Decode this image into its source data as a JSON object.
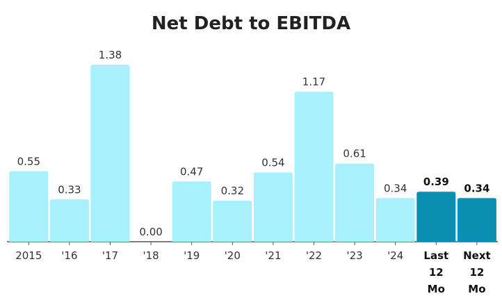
{
  "chart_data": {
    "type": "bar",
    "title": "Net Debt to EBITDA",
    "categories": [
      "2015",
      "'16",
      "'17",
      "'18",
      "'19",
      "'20",
      "'21",
      "'22",
      "'23",
      "'24",
      "Last 12 Mo",
      "Next 12 Mo"
    ],
    "values": [
      0.55,
      0.33,
      1.38,
      0,
      0.47,
      0.32,
      0.54,
      1.17,
      0.61,
      0.34,
      0.39,
      0.34
    ],
    "value_labels": [
      "0.55",
      "0.33",
      "1.38",
      "0.00",
      "0.47",
      "0.32",
      "0.54",
      "1.17",
      "0.61",
      "0.34",
      "0.39",
      "0.34"
    ],
    "colors": [
      "#a6f1fb",
      "#a6f1fb",
      "#a6f1fb",
      "#a6f1fb",
      "#a6f1fb",
      "#a6f1fb",
      "#a6f1fb",
      "#a6f1fb",
      "#a6f1fb",
      "#a6f1fb",
      "#0b8fb1",
      "#0b8fb1"
    ],
    "bold": [
      false,
      false,
      false,
      false,
      false,
      false,
      false,
      false,
      false,
      false,
      true,
      true
    ]
  }
}
